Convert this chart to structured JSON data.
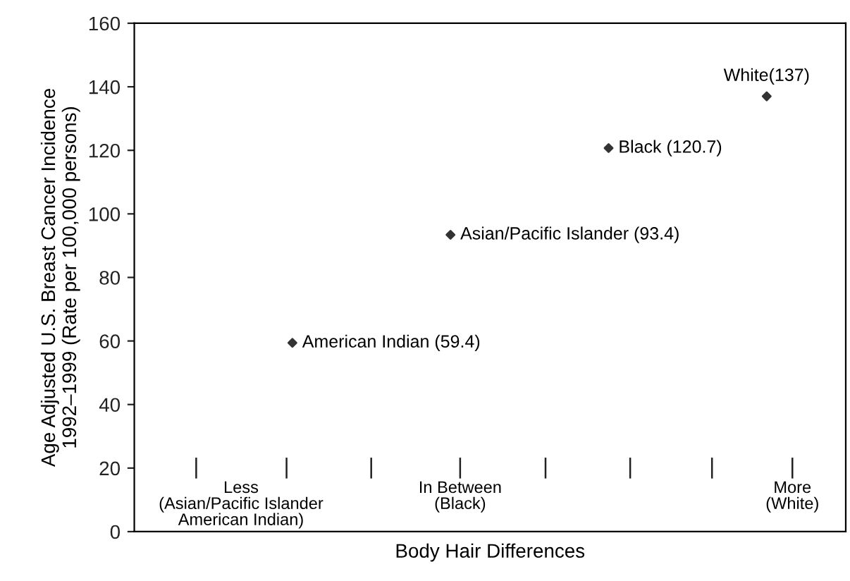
{
  "chart_data": {
    "type": "scatter",
    "xlabel": "Body Hair Differences",
    "ylabel": "Age Adjusted U.S. Breast Cancer Incidence\n1992–1999 (Rate per 100,000 persons)",
    "categories": [
      null,
      null,
      null,
      null
    ],
    "values": [
      59.4,
      93.4,
      120.7,
      137
    ],
    "value_labels": [
      "American Indian (59.4)",
      "Asian/Pacific Islander (93.4)",
      "Black (120.7)",
      "White(137)"
    ],
    "color": "#333333",
    "marker": "diamond",
    "ylim": [
      0,
      160
    ],
    "yticks": [
      0,
      20,
      40,
      60,
      80,
      100,
      120,
      140,
      160
    ],
    "grid": false,
    "tick_labels": "y",
    "annotations": [
      "Less\n(Asian/Pacific Islander\nAmerican Indian)",
      "In Between\n(Black)",
      "More\n(White)"
    ]
  }
}
